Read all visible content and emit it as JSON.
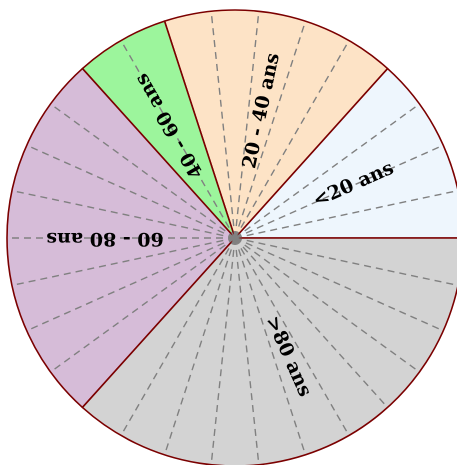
{
  "chart_data": {
    "type": "pie",
    "start_angle_deg": 0,
    "direction": "counterclockwise",
    "dashed_spokes": true,
    "slices": [
      {
        "label": "<20 ans",
        "value": 4,
        "color": "#eef6fd"
      },
      {
        "label": "20 - 40 ans",
        "value": 5,
        "color": "#fde3c6"
      },
      {
        "label": "40 - 60 ans",
        "value": 2,
        "color": "#9cf59c"
      },
      {
        "label": "60 - 80 ans",
        "value": 8,
        "color": "#d6bcd8"
      },
      {
        "label": ">80 ans",
        "value": 11,
        "color": "#d3d3d3"
      }
    ],
    "stroke_color": "#7b0000",
    "spoke_color": "#808080"
  }
}
